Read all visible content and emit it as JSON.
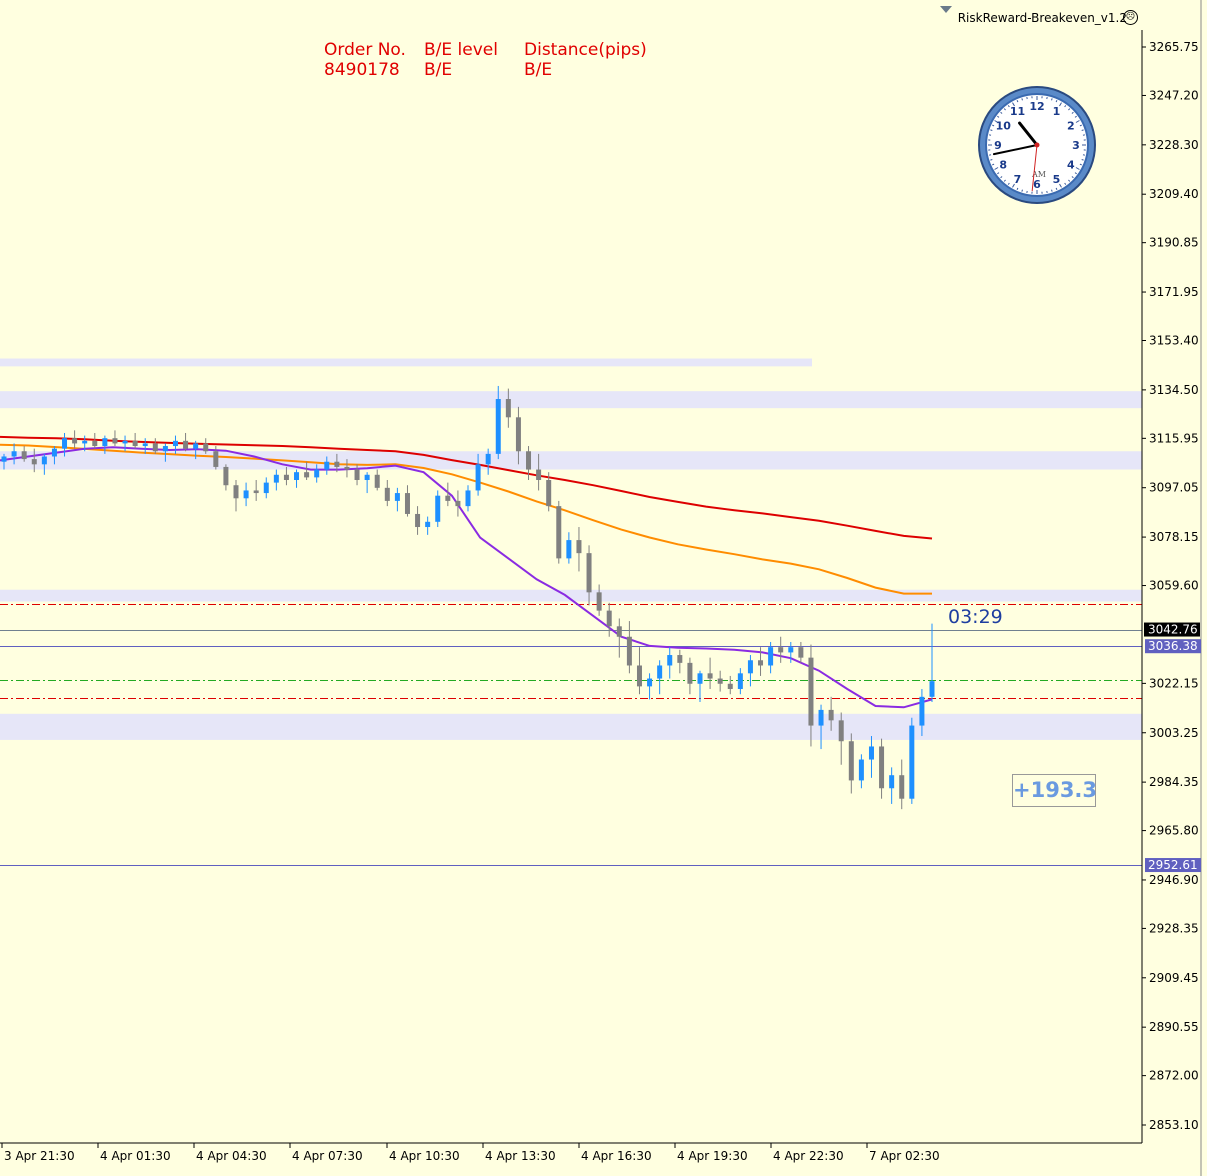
{
  "indicator": {
    "name": "RiskReward-Breakeven_v1.2",
    "menu_icon": "triangle-down-icon",
    "smiley_icon": "smiley-icon"
  },
  "order_table": {
    "headers": [
      "Order No.",
      "B/E level",
      "Distance(pips)"
    ],
    "row": [
      "8490178",
      "B/E",
      "B/E"
    ],
    "color": "#e00000"
  },
  "timer": "03:29",
  "profit_label": "+193.3",
  "clock": {
    "numbers": [
      "12",
      "1",
      "2",
      "3",
      "4",
      "5",
      "6",
      "7",
      "8",
      "9",
      "10",
      "11"
    ],
    "ampm": "AM",
    "hour": 10,
    "minute": 43,
    "second": 31
  },
  "colors": {
    "background": "#ffffe0",
    "bull": "#1e90ff",
    "bear": "#808080",
    "zone": "#e6e6f8",
    "ma_slow": "#dd0000",
    "ma_mid": "#ff8c00",
    "ma_fast": "#8a2be2",
    "stop_line": "#dd0000",
    "target_line": "#22aa22",
    "price_line": "#6060c0"
  },
  "chart_data": {
    "type": "candlestick",
    "timeframe_labels": [
      "3 Apr 21:30",
      "4 Apr 01:30",
      "4 Apr 04:30",
      "4 Apr 07:30",
      "4 Apr 10:30",
      "4 Apr 13:30",
      "4 Apr 16:30",
      "4 Apr 19:30",
      "4 Apr 22:30",
      "7 Apr 02:30"
    ],
    "y_ticks": [
      "3265.75",
      "3247.20",
      "3228.30",
      "3209.40",
      "3190.85",
      "3171.95",
      "3153.40",
      "3134.50",
      "3115.95",
      "3097.05",
      "3078.15",
      "3059.60",
      "3022.15",
      "3003.25",
      "2984.35",
      "2965.80",
      "2946.90",
      "2928.35",
      "2909.45",
      "2890.55",
      "2872.00",
      "2853.10"
    ],
    "ylim": [
      2845,
      3272
    ],
    "bid_label": "3042.76",
    "line_labels": [
      {
        "value": "3036.38",
        "color": "#6060c0"
      },
      {
        "value": "2952.61",
        "color": "#6060c0"
      }
    ],
    "horizontal_lines": [
      {
        "price": 3042.76,
        "style": "solid",
        "color": "#708090"
      },
      {
        "price": 3036.38,
        "style": "solid",
        "color": "#6060c0"
      },
      {
        "price": 2952.61,
        "style": "solid",
        "color": "#6060c0"
      },
      {
        "price": 3052.5,
        "style": "dashdot",
        "color": "#dd0000"
      },
      {
        "price": 3016.5,
        "style": "dashdot",
        "color": "#dd0000"
      },
      {
        "price": 3023.5,
        "style": "dashdot",
        "color": "#22aa22"
      }
    ],
    "zones": [
      {
        "top": 3146.5,
        "bottom": 3143.5,
        "x_end_label": "4 Apr 22:30"
      },
      {
        "top": 3134.0,
        "bottom": 3127.5
      },
      {
        "top": 3111.0,
        "bottom": 3104.0
      },
      {
        "top": 3058.0,
        "bottom": 3053.5
      },
      {
        "top": 3010.5,
        "bottom": 3000.5
      }
    ],
    "candles": [
      [
        3107,
        3110,
        3104,
        3109
      ],
      [
        3109,
        3114,
        3106,
        3111
      ],
      [
        3111,
        3113,
        3107,
        3108
      ],
      [
        3108,
        3112,
        3103,
        3106
      ],
      [
        3106,
        3110,
        3102,
        3109
      ],
      [
        3109,
        3113,
        3106,
        3112
      ],
      [
        3112,
        3118,
        3109,
        3116
      ],
      [
        3116,
        3119,
        3112,
        3114
      ],
      [
        3114,
        3117,
        3111,
        3115
      ],
      [
        3115,
        3118,
        3112,
        3113
      ],
      [
        3113,
        3117,
        3110,
        3116
      ],
      [
        3116,
        3119,
        3113,
        3114
      ],
      [
        3114,
        3117,
        3111,
        3115
      ],
      [
        3115,
        3118,
        3112,
        3113
      ],
      [
        3113,
        3116,
        3110,
        3114
      ],
      [
        3114,
        3116,
        3110,
        3111
      ],
      [
        3111,
        3114,
        3107,
        3113
      ],
      [
        3113,
        3117,
        3110,
        3115
      ],
      [
        3115,
        3118,
        3111,
        3112
      ],
      [
        3112,
        3115,
        3108,
        3114
      ],
      [
        3114,
        3116,
        3110,
        3111
      ],
      [
        3111,
        3113,
        3104,
        3105
      ],
      [
        3105,
        3106,
        3096,
        3098
      ],
      [
        3098,
        3100,
        3088,
        3093
      ],
      [
        3093,
        3099,
        3090,
        3096
      ],
      [
        3096,
        3100,
        3092,
        3095
      ],
      [
        3095,
        3101,
        3093,
        3099
      ],
      [
        3099,
        3104,
        3096,
        3102
      ],
      [
        3102,
        3105,
        3098,
        3100
      ],
      [
        3100,
        3104,
        3097,
        3103
      ],
      [
        3103,
        3107,
        3100,
        3101
      ],
      [
        3101,
        3106,
        3099,
        3104
      ],
      [
        3104,
        3109,
        3102,
        3107
      ],
      [
        3107,
        3110,
        3103,
        3105
      ],
      [
        3105,
        3108,
        3101,
        3104
      ],
      [
        3104,
        3106,
        3098,
        3100
      ],
      [
        3100,
        3103,
        3095,
        3102
      ],
      [
        3102,
        3104,
        3096,
        3097
      ],
      [
        3097,
        3100,
        3090,
        3092
      ],
      [
        3092,
        3097,
        3088,
        3095
      ],
      [
        3095,
        3098,
        3086,
        3087
      ],
      [
        3087,
        3090,
        3079,
        3082
      ],
      [
        3082,
        3086,
        3079,
        3084
      ],
      [
        3084,
        3096,
        3082,
        3094
      ],
      [
        3094,
        3099,
        3090,
        3092
      ],
      [
        3092,
        3096,
        3086,
        3090
      ],
      [
        3090,
        3098,
        3088,
        3096
      ],
      [
        3096,
        3110,
        3094,
        3106
      ],
      [
        3106,
        3112,
        3102,
        3110
      ],
      [
        3110,
        3136,
        3108,
        3131
      ],
      [
        3131,
        3135,
        3120,
        3124
      ],
      [
        3124,
        3128,
        3106,
        3111
      ],
      [
        3111,
        3113,
        3100,
        3104
      ],
      [
        3104,
        3110,
        3096,
        3100
      ],
      [
        3100,
        3103,
        3088,
        3090
      ],
      [
        3090,
        3092,
        3068,
        3070
      ],
      [
        3070,
        3080,
        3068,
        3077
      ],
      [
        3077,
        3082,
        3065,
        3072
      ],
      [
        3072,
        3075,
        3052,
        3057
      ],
      [
        3057,
        3060,
        3048,
        3050
      ],
      [
        3050,
        3053,
        3040,
        3044
      ],
      [
        3044,
        3047,
        3032,
        3040
      ],
      [
        3040,
        3046,
        3026,
        3029
      ],
      [
        3029,
        3036,
        3018,
        3021
      ],
      [
        3021,
        3026,
        3016,
        3024
      ],
      [
        3024,
        3031,
        3018,
        3029
      ],
      [
        3029,
        3036,
        3024,
        3033
      ],
      [
        3033,
        3035,
        3026,
        3030
      ],
      [
        3030,
        3032,
        3018,
        3022
      ],
      [
        3022,
        3027,
        3015,
        3026
      ],
      [
        3026,
        3032,
        3020,
        3024
      ],
      [
        3024,
        3027,
        3019,
        3022
      ],
      [
        3022,
        3025,
        3018,
        3020
      ],
      [
        3020,
        3028,
        3018,
        3026
      ],
      [
        3026,
        3033,
        3021,
        3031
      ],
      [
        3031,
        3036,
        3025,
        3029
      ],
      [
        3029,
        3038,
        3026,
        3036
      ],
      [
        3036,
        3040,
        3030,
        3034
      ],
      [
        3034,
        3038,
        3030,
        3036
      ],
      [
        3036,
        3038,
        3030,
        3032
      ],
      [
        3032,
        3037,
        2998,
        3006
      ],
      [
        3006,
        3014,
        2997,
        3012
      ],
      [
        3012,
        3017,
        3004,
        3008
      ],
      [
        3008,
        3011,
        2991,
        3000
      ],
      [
        3000,
        3003,
        2980,
        2985
      ],
      [
        2985,
        2995,
        2982,
        2993
      ],
      [
        2993,
        3002,
        2986,
        2998
      ],
      [
        2998,
        3001,
        2978,
        2982
      ],
      [
        2982,
        2990,
        2976,
        2987
      ],
      [
        2987,
        2993,
        2974,
        2978
      ],
      [
        2978,
        3009,
        2976,
        3006
      ],
      [
        3006,
        3020,
        3002,
        3017
      ],
      [
        3017,
        3045,
        3015,
        3023
      ]
    ],
    "moving_averages": [
      {
        "name": "",
        "color": "#dd0000",
        "values": [
          3116.5,
          3116.2,
          3116.0,
          3115.6,
          3115.0,
          3114.6,
          3114.2,
          3113.9,
          3113.6,
          3113.3,
          3113.0,
          3112.5,
          3112.0,
          3111.5,
          3111.0,
          3109.6,
          3107.6,
          3105.8,
          3103.8,
          3101.8,
          3100.0,
          3098.0,
          3095.8,
          3093.5,
          3091.6,
          3089.8,
          3088.4,
          3087.2,
          3085.8,
          3084.4,
          3082.5,
          3080.5,
          3078.6,
          3077.6
        ]
      },
      {
        "name": "",
        "color": "#ff8c00",
        "values": [
          3113.5,
          3113.2,
          3112.6,
          3111.9,
          3111.2,
          3110.5,
          3109.9,
          3109.3,
          3108.8,
          3108.2,
          3107.5,
          3106.8,
          3106.0,
          3105.8,
          3106.0,
          3104.6,
          3102.2,
          3099.0,
          3095.6,
          3091.8,
          3088.4,
          3084.6,
          3081.0,
          3078.0,
          3075.4,
          3073.4,
          3071.6,
          3069.6,
          3068.0,
          3065.8,
          3062.5,
          3058.8,
          3056.5,
          3056.5
        ]
      },
      {
        "name": "",
        "color": "#8a2be2",
        "values": [
          3107.5,
          3109.0,
          3110.5,
          3112.0,
          3112.5,
          3112.0,
          3111.5,
          3111.8,
          3111.2,
          3109.0,
          3106.0,
          3104.0,
          3104.0,
          3104.5,
          3105.5,
          3103.0,
          3094.0,
          3078.0,
          3070.0,
          3062.0,
          3056.0,
          3048.0,
          3040.0,
          3036.5,
          3035.8,
          3035.5,
          3035.0,
          3034.0,
          3031.8,
          3027.0,
          3020.0,
          3013.5,
          3013.0,
          3016.0
        ]
      }
    ]
  }
}
